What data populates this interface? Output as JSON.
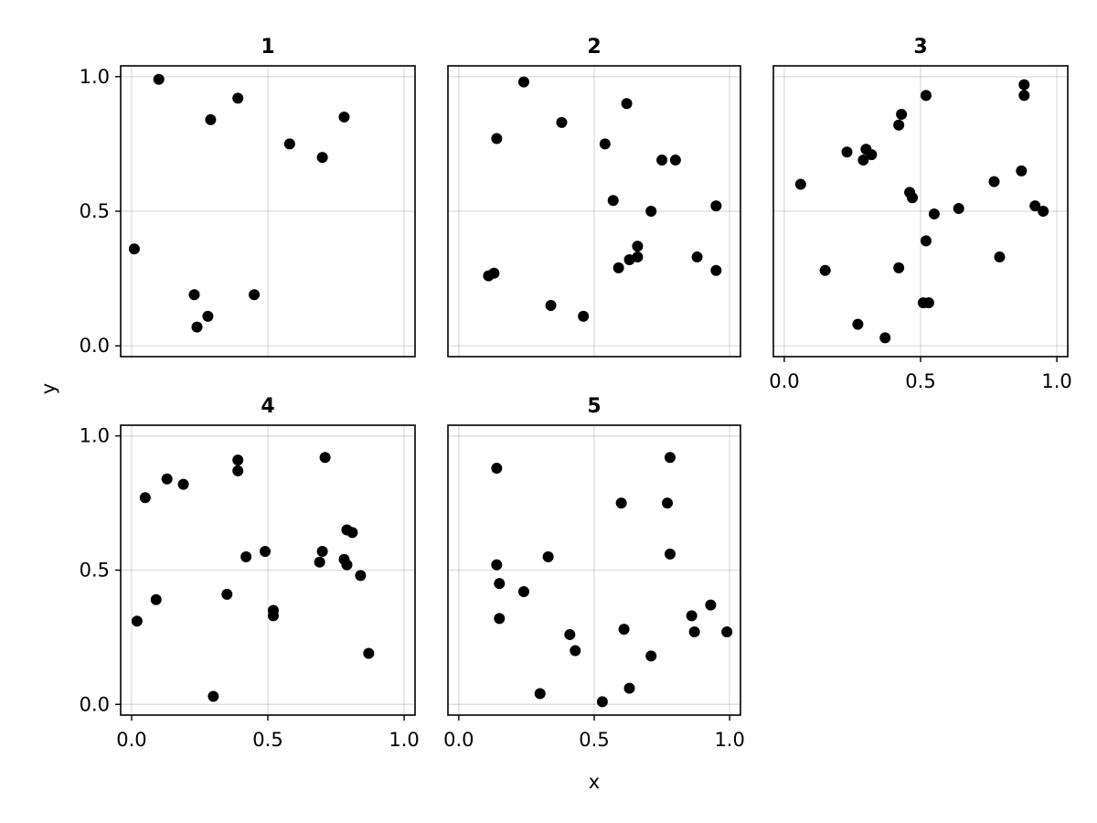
{
  "chart_data": {
    "type": "scatter",
    "xlabel": "x",
    "ylabel": "y",
    "xlim": [
      -0.04,
      1.04
    ],
    "ylim": [
      -0.04,
      1.04
    ],
    "xticks": [
      "0.0",
      "0.5",
      "1.0"
    ],
    "yticks": [
      "0.0",
      "0.5",
      "1.0"
    ],
    "grid": true,
    "point_color": "#000000",
    "panels": [
      {
        "title": "1",
        "points": [
          [
            0.1,
            0.99
          ],
          [
            0.29,
            0.84
          ],
          [
            0.39,
            0.92
          ],
          [
            0.58,
            0.75
          ],
          [
            0.7,
            0.7
          ],
          [
            0.78,
            0.85
          ],
          [
            0.01,
            0.36
          ],
          [
            0.23,
            0.19
          ],
          [
            0.45,
            0.19
          ],
          [
            0.28,
            0.11
          ],
          [
            0.24,
            0.07
          ]
        ]
      },
      {
        "title": "2",
        "points": [
          [
            0.24,
            0.98
          ],
          [
            0.38,
            0.83
          ],
          [
            0.62,
            0.9
          ],
          [
            0.14,
            0.77
          ],
          [
            0.54,
            0.75
          ],
          [
            0.75,
            0.69
          ],
          [
            0.8,
            0.69
          ],
          [
            0.57,
            0.54
          ],
          [
            0.71,
            0.5
          ],
          [
            0.95,
            0.52
          ],
          [
            0.13,
            0.27
          ],
          [
            0.11,
            0.26
          ],
          [
            0.66,
            0.37
          ],
          [
            0.63,
            0.32
          ],
          [
            0.66,
            0.33
          ],
          [
            0.59,
            0.29
          ],
          [
            0.88,
            0.33
          ],
          [
            0.95,
            0.28
          ],
          [
            0.34,
            0.15
          ],
          [
            0.46,
            0.11
          ]
        ]
      },
      {
        "title": "3",
        "points": [
          [
            0.88,
            0.97
          ],
          [
            0.88,
            0.93
          ],
          [
            0.52,
            0.93
          ],
          [
            0.43,
            0.86
          ],
          [
            0.42,
            0.82
          ],
          [
            0.3,
            0.73
          ],
          [
            0.23,
            0.72
          ],
          [
            0.32,
            0.71
          ],
          [
            0.29,
            0.69
          ],
          [
            0.06,
            0.6
          ],
          [
            0.77,
            0.61
          ],
          [
            0.87,
            0.65
          ],
          [
            0.46,
            0.57
          ],
          [
            0.47,
            0.55
          ],
          [
            0.92,
            0.52
          ],
          [
            0.95,
            0.5
          ],
          [
            0.64,
            0.51
          ],
          [
            0.55,
            0.49
          ],
          [
            0.52,
            0.39
          ],
          [
            0.79,
            0.33
          ],
          [
            0.15,
            0.28
          ],
          [
            0.42,
            0.29
          ],
          [
            0.51,
            0.16
          ],
          [
            0.53,
            0.16
          ],
          [
            0.27,
            0.08
          ],
          [
            0.37,
            0.03
          ]
        ]
      },
      {
        "title": "4",
        "points": [
          [
            0.71,
            0.92
          ],
          [
            0.39,
            0.91
          ],
          [
            0.39,
            0.87
          ],
          [
            0.13,
            0.84
          ],
          [
            0.19,
            0.82
          ],
          [
            0.05,
            0.77
          ],
          [
            0.79,
            0.65
          ],
          [
            0.81,
            0.64
          ],
          [
            0.49,
            0.57
          ],
          [
            0.7,
            0.57
          ],
          [
            0.42,
            0.55
          ],
          [
            0.78,
            0.54
          ],
          [
            0.69,
            0.53
          ],
          [
            0.79,
            0.52
          ],
          [
            0.84,
            0.48
          ],
          [
            0.35,
            0.41
          ],
          [
            0.09,
            0.39
          ],
          [
            0.52,
            0.35
          ],
          [
            0.52,
            0.33
          ],
          [
            0.02,
            0.31
          ],
          [
            0.87,
            0.19
          ],
          [
            0.3,
            0.03
          ]
        ]
      },
      {
        "title": "5",
        "points": [
          [
            0.78,
            0.92
          ],
          [
            0.14,
            0.88
          ],
          [
            0.6,
            0.75
          ],
          [
            0.77,
            0.75
          ],
          [
            0.78,
            0.56
          ],
          [
            0.33,
            0.55
          ],
          [
            0.14,
            0.52
          ],
          [
            0.15,
            0.45
          ],
          [
            0.24,
            0.42
          ],
          [
            0.86,
            0.33
          ],
          [
            0.93,
            0.37
          ],
          [
            0.15,
            0.32
          ],
          [
            0.61,
            0.28
          ],
          [
            0.87,
            0.27
          ],
          [
            0.99,
            0.27
          ],
          [
            0.41,
            0.26
          ],
          [
            0.43,
            0.2
          ],
          [
            0.71,
            0.18
          ],
          [
            0.63,
            0.06
          ],
          [
            0.3,
            0.04
          ],
          [
            0.53,
            0.01
          ]
        ]
      }
    ]
  }
}
